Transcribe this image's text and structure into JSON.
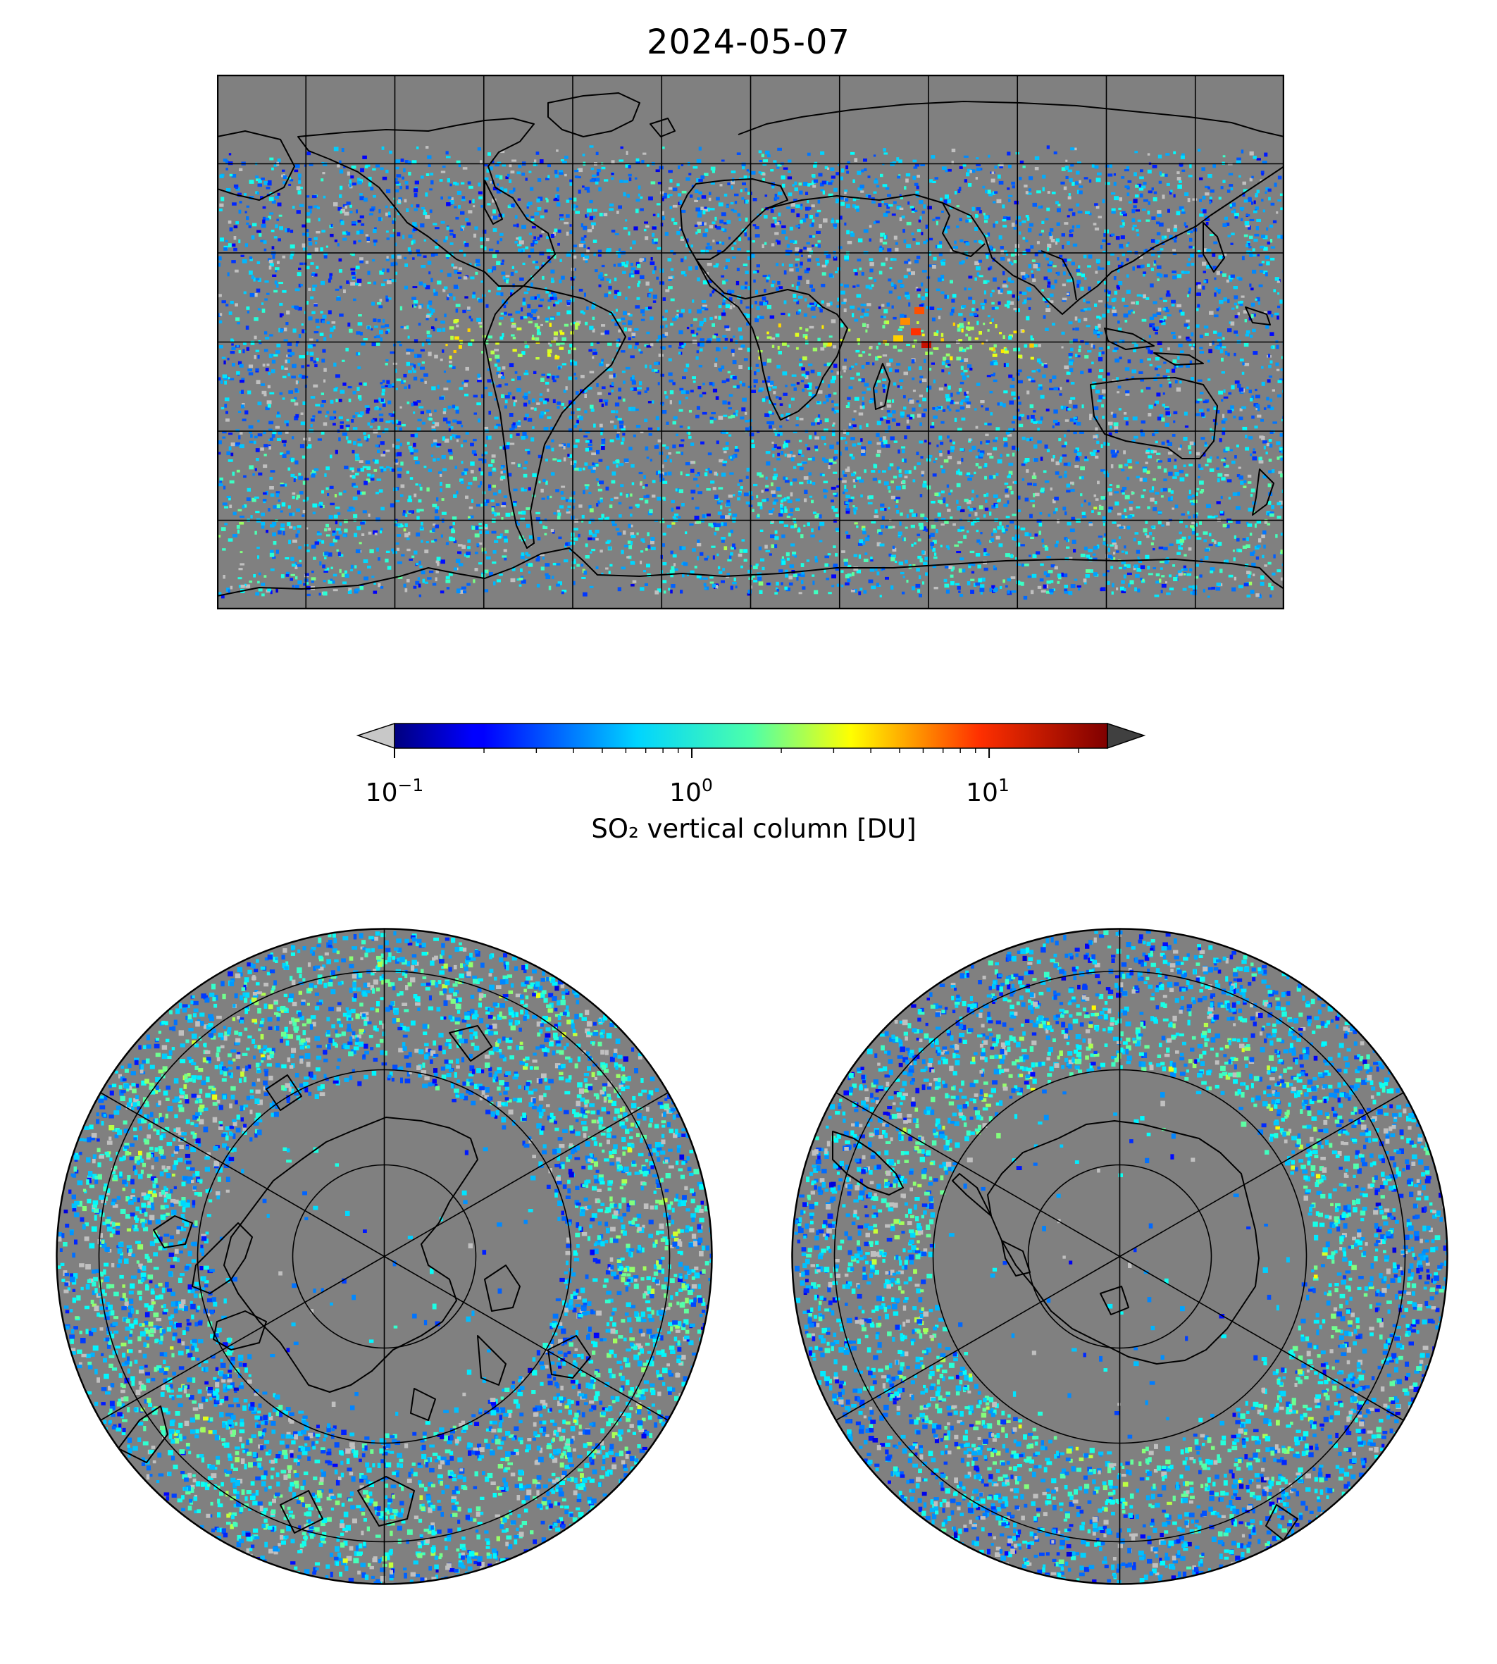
{
  "title": "2024-05-07",
  "colorbar": {
    "label": "SO₂ vertical column [DU]",
    "colormap": "jet",
    "scale": "log",
    "range": [
      0.1,
      25
    ],
    "under_color": "#c8c8c8",
    "over_color": "#404040",
    "extend": "both",
    "ticks": [
      {
        "base": "10",
        "exp": "−1"
      },
      {
        "base": "10",
        "exp": "0"
      },
      {
        "base": "10",
        "exp": "1"
      }
    ]
  },
  "maps": {
    "background_color": "#808080",
    "gridline_color": "#000000",
    "coastline_color": "#000000",
    "global": {
      "projection": "plate-carree",
      "gridlines": {
        "lon_every_deg": 30,
        "lat_every_deg": 30
      }
    },
    "north_polar": {
      "projection": "north-polar-stereographic",
      "gridlines": {
        "lat_circles_deg": [
          80,
          60,
          40
        ],
        "meridians_every_deg": 60
      }
    },
    "south_polar": {
      "projection": "south-polar-stereographic",
      "gridlines": {
        "lat_circles_deg": [
          -80,
          -60,
          -40
        ],
        "meridians_every_deg": 60
      }
    }
  }
}
